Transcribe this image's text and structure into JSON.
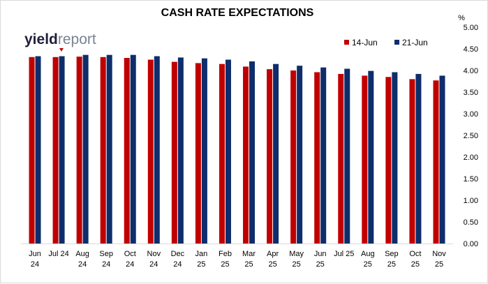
{
  "chart_data": {
    "type": "bar",
    "title": "CASH RATE EXPECTATIONS",
    "y_unit": "%",
    "ylim": [
      0,
      5
    ],
    "y_ticks": [
      "0.00",
      "0.50",
      "1.00",
      "1.50",
      "2.00",
      "2.50",
      "3.00",
      "3.50",
      "4.00",
      "4.50",
      "5.00"
    ],
    "y_axis_side": "right",
    "legend_position": "top-right",
    "grid": false,
    "categories": [
      [
        "Jun",
        "24"
      ],
      [
        "Jul 24"
      ],
      [
        "Aug",
        "24"
      ],
      [
        "Sep",
        "24"
      ],
      [
        "Oct",
        "24"
      ],
      [
        "Nov",
        "24"
      ],
      [
        "Dec",
        "24"
      ],
      [
        "Jan",
        "25"
      ],
      [
        "Feb",
        "25"
      ],
      [
        "Mar",
        "25"
      ],
      [
        "Apr",
        "25"
      ],
      [
        "May",
        "25"
      ],
      [
        "Jun",
        "25"
      ],
      [
        "Jul 25"
      ],
      [
        "Aug",
        "25"
      ],
      [
        "Sep",
        "25"
      ],
      [
        "Oct",
        "25"
      ],
      [
        "Nov",
        "25"
      ]
    ],
    "series": [
      {
        "name": "14-Jun",
        "color": "#c00000",
        "values": [
          4.31,
          4.31,
          4.32,
          4.31,
          4.29,
          4.25,
          4.2,
          4.17,
          4.15,
          4.09,
          4.03,
          4.0,
          3.96,
          3.92,
          3.88,
          3.85,
          3.8,
          3.77
        ]
      },
      {
        "name": "21-Jun",
        "color": "#0e2d6b",
        "values": [
          4.33,
          4.33,
          4.36,
          4.36,
          4.36,
          4.33,
          4.3,
          4.28,
          4.25,
          4.21,
          4.15,
          4.11,
          4.07,
          4.04,
          3.99,
          3.96,
          3.92,
          3.88
        ]
      }
    ]
  },
  "logo": {
    "part1": "yield",
    "part2": "report",
    "icon": "yieldreport-logo"
  }
}
